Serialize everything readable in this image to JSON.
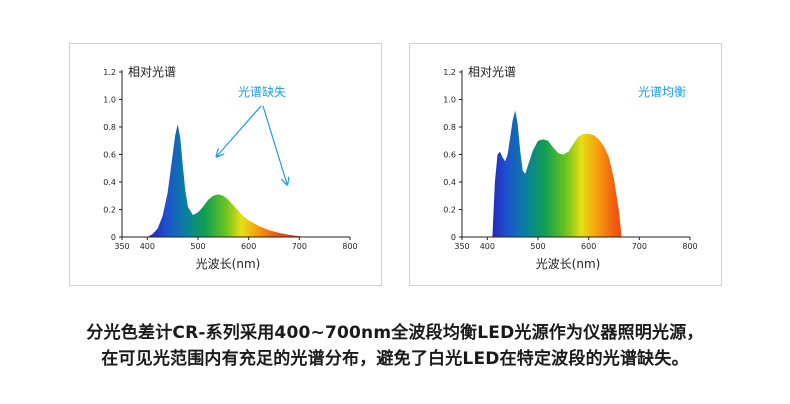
{
  "chart_data": [
    {
      "type": "area",
      "ylabel": "相对光谱",
      "xlabel": "光波长(nm)",
      "xlim": [
        350,
        800
      ],
      "ylim": [
        0,
        1.2
      ],
      "xticks": [
        350,
        400,
        500,
        600,
        700,
        800
      ],
      "yticks": [
        0,
        0.2,
        0.4,
        0.6,
        0.8,
        1.0,
        1.2
      ],
      "ytick_labels": [
        "0",
        "0.2",
        "0.4",
        "0.6",
        "0.8",
        "1.0",
        "1.2"
      ],
      "annotation": "光谱缺失",
      "annotation_color": "#1e9be0",
      "x": [
        400,
        410,
        420,
        430,
        440,
        450,
        455,
        460,
        465,
        470,
        475,
        480,
        490,
        500,
        510,
        520,
        530,
        540,
        550,
        560,
        570,
        580,
        590,
        600,
        620,
        640,
        660,
        680,
        700,
        710
      ],
      "y": [
        0,
        0.02,
        0.06,
        0.15,
        0.32,
        0.6,
        0.74,
        0.82,
        0.72,
        0.52,
        0.34,
        0.22,
        0.16,
        0.18,
        0.22,
        0.27,
        0.3,
        0.31,
        0.3,
        0.27,
        0.23,
        0.19,
        0.15,
        0.12,
        0.08,
        0.05,
        0.03,
        0.015,
        0.005,
        0
      ]
    },
    {
      "type": "area",
      "ylabel": "相对光谱",
      "xlabel": "光波长(nm)",
      "xlim": [
        350,
        800
      ],
      "ylim": [
        0,
        1.2
      ],
      "xticks": [
        350,
        400,
        500,
        600,
        700,
        800
      ],
      "yticks": [
        0,
        0.2,
        0.4,
        0.6,
        0.8,
        1.0,
        1.2
      ],
      "ytick_labels": [
        "0",
        "0.2",
        "0.4",
        "0.6",
        "0.8",
        "1.0",
        "1.2"
      ],
      "annotation": "光谱均衡",
      "annotation_color": "#1e9be0",
      "x": [
        410,
        415,
        420,
        425,
        430,
        435,
        440,
        445,
        450,
        455,
        460,
        465,
        470,
        475,
        480,
        490,
        500,
        510,
        520,
        530,
        540,
        550,
        560,
        570,
        580,
        590,
        600,
        610,
        620,
        630,
        640,
        650,
        660,
        665
      ],
      "y": [
        0,
        0.4,
        0.6,
        0.62,
        0.58,
        0.55,
        0.6,
        0.72,
        0.85,
        0.92,
        0.82,
        0.62,
        0.48,
        0.46,
        0.52,
        0.63,
        0.7,
        0.71,
        0.7,
        0.65,
        0.61,
        0.6,
        0.62,
        0.68,
        0.73,
        0.75,
        0.75,
        0.74,
        0.71,
        0.66,
        0.58,
        0.42,
        0.18,
        0
      ]
    }
  ],
  "caption": {
    "line1": "分光色差计CR-系列采用400~700nm全波段均衡LED光源作为仪器照明光源，",
    "line2": "在可见光范围内有充足的光谱分布，避免了白光LED在特定波段的光谱缺失。"
  }
}
